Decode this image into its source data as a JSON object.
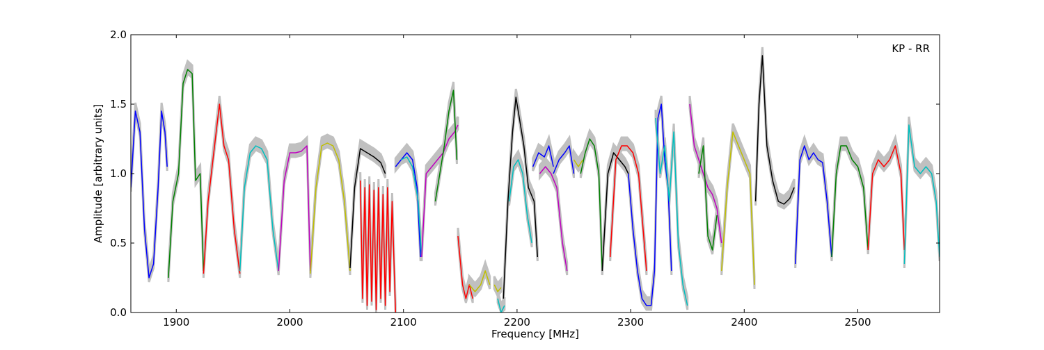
{
  "chart_data": {
    "type": "line",
    "title": "",
    "annotation": "KP - RR",
    "xlabel": "Frequency [MHz]",
    "ylabel": "Amplitude [arbitrary units]",
    "xlim": [
      1860,
      2572
    ],
    "ylim": [
      0.0,
      2.0
    ],
    "xticks": [
      1900,
      2000,
      2100,
      2200,
      2300,
      2400,
      2500
    ],
    "yticks": [
      0.0,
      0.5,
      1.0,
      1.5,
      2.0
    ],
    "xtick_labels": [
      "1900",
      "2000",
      "2100",
      "2200",
      "2300",
      "2400",
      "2500"
    ],
    "ytick_labels": [
      "0.0",
      "0.5",
      "1.0",
      "1.5",
      "2.0"
    ],
    "grid": false,
    "legend": "none",
    "background_envelope_color": "#c0c0c0",
    "series": [
      {
        "color": "#0000ff",
        "x": [
          1860,
          1864,
          1868,
          1872,
          1876,
          1880,
          1884,
          1887,
          1890,
          1892
        ],
        "y": [
          0.9,
          1.45,
          1.3,
          0.6,
          0.25,
          0.35,
          0.9,
          1.45,
          1.3,
          1.05
        ]
      },
      {
        "color": "#008000",
        "x": [
          1893,
          1897,
          1902,
          1906,
          1910,
          1914,
          1917,
          1921,
          1924
        ],
        "y": [
          0.25,
          0.8,
          1.0,
          1.65,
          1.75,
          1.72,
          0.95,
          1.0,
          0.3
        ]
      },
      {
        "color": "#ff0000",
        "x": [
          1924,
          1928,
          1933,
          1938,
          1942,
          1946,
          1951,
          1956
        ],
        "y": [
          0.28,
          0.8,
          1.15,
          1.5,
          1.2,
          1.1,
          0.6,
          0.28
        ]
      },
      {
        "color": "#00bfbf",
        "x": [
          1956,
          1960,
          1965,
          1970,
          1975,
          1980,
          1985,
          1990
        ],
        "y": [
          0.3,
          0.9,
          1.15,
          1.2,
          1.18,
          1.1,
          0.6,
          0.3
        ]
      },
      {
        "color": "#bf00bf",
        "x": [
          1990,
          1995,
          2000,
          2005,
          2010,
          2015,
          2018
        ],
        "y": [
          0.3,
          0.95,
          1.15,
          1.15,
          1.16,
          1.2,
          0.3
        ]
      },
      {
        "color": "#bfbf00",
        "x": [
          2018,
          2023,
          2028,
          2033,
          2038,
          2043,
          2048,
          2053
        ],
        "y": [
          0.28,
          0.9,
          1.2,
          1.22,
          1.2,
          1.1,
          0.8,
          0.3
        ]
      },
      {
        "color": "#000000",
        "x": [
          2053,
          2057,
          2062,
          2068,
          2074,
          2080,
          2084
        ],
        "y": [
          0.32,
          0.9,
          1.18,
          1.15,
          1.12,
          1.08,
          1.0
        ]
      },
      {
        "color": "#ff0000",
        "x": [
          2062,
          2064,
          2066,
          2068,
          2070,
          2072,
          2074,
          2076,
          2078,
          2080,
          2082,
          2084,
          2086,
          2088,
          2090,
          2093
        ],
        "y": [
          0.95,
          0.1,
          0.9,
          0.05,
          0.92,
          0.08,
          0.88,
          0.02,
          0.9,
          0.1,
          0.85,
          0.05,
          0.9,
          0.15,
          0.8,
          0.0
        ]
      },
      {
        "color": "#0000ff",
        "x": [
          2093,
          2098,
          2103,
          2108,
          2112,
          2115
        ],
        "y": [
          1.05,
          1.1,
          1.15,
          1.1,
          0.9,
          0.4
        ]
      },
      {
        "color": "#00bfbf",
        "x": [
          2098,
          2103,
          2108,
          2113,
          2116
        ],
        "y": [
          1.1,
          1.12,
          1.05,
          0.8,
          0.4
        ]
      },
      {
        "color": "#bf00bf",
        "x": [
          2116,
          2120,
          2125,
          2130,
          2135,
          2140,
          2145,
          2148
        ],
        "y": [
          0.4,
          1.0,
          1.05,
          1.1,
          1.15,
          1.25,
          1.3,
          1.35
        ]
      },
      {
        "color": "#008000",
        "x": [
          2128,
          2132,
          2136,
          2140,
          2144,
          2147
        ],
        "y": [
          0.8,
          1.0,
          1.2,
          1.45,
          1.6,
          1.1
        ]
      },
      {
        "color": "#ff0000",
        "x": [
          2148,
          2152,
          2155,
          2158,
          2161
        ],
        "y": [
          0.55,
          0.2,
          0.1,
          0.2,
          0.1
        ]
      },
      {
        "color": "#bfbf00",
        "x": [
          2158,
          2163,
          2168,
          2172,
          2176
        ],
        "y": [
          0.2,
          0.15,
          0.2,
          0.3,
          0.2
        ]
      },
      {
        "color": "#bfbf00",
        "x": [
          2180,
          2183,
          2186
        ],
        "y": [
          0.2,
          0.15,
          0.18
        ]
      },
      {
        "color": "#00bfbf",
        "x": [
          2183,
          2186,
          2189
        ],
        "y": [
          0.1,
          0.0,
          0.05
        ]
      },
      {
        "color": "#000000",
        "x": [
          2188,
          2192,
          2196,
          2199,
          2202,
          2206,
          2210,
          2215,
          2218
        ],
        "y": [
          0.1,
          0.8,
          1.3,
          1.55,
          1.4,
          1.2,
          0.9,
          0.8,
          0.4
        ]
      },
      {
        "color": "#00bfbf",
        "x": [
          2193,
          2197,
          2201,
          2205,
          2209,
          2213
        ],
        "y": [
          0.8,
          1.05,
          1.1,
          1.0,
          0.7,
          0.5
        ]
      },
      {
        "color": "#0000ff",
        "x": [
          2214,
          2219,
          2224,
          2228,
          2232
        ],
        "y": [
          1.05,
          1.15,
          1.12,
          1.2,
          1.05
        ]
      },
      {
        "color": "#bf00bf",
        "x": [
          2220,
          2225,
          2230,
          2235,
          2240,
          2244
        ],
        "y": [
          1.0,
          1.05,
          1.0,
          0.9,
          0.5,
          0.3
        ]
      },
      {
        "color": "#0000ff",
        "x": [
          2232,
          2237,
          2242,
          2246,
          2250
        ],
        "y": [
          1.0,
          1.1,
          1.15,
          1.2,
          1.0
        ]
      },
      {
        "color": "#bfbf00",
        "x": [
          2250,
          2254,
          2258
        ],
        "y": [
          1.1,
          1.05,
          1.1
        ]
      },
      {
        "color": "#008000",
        "x": [
          2256,
          2260,
          2264,
          2268,
          2272,
          2275
        ],
        "y": [
          1.0,
          1.15,
          1.25,
          1.2,
          1.0,
          0.3
        ]
      },
      {
        "color": "#000000",
        "x": [
          2275,
          2280,
          2285,
          2290,
          2295,
          2298
        ],
        "y": [
          0.3,
          1.0,
          1.15,
          1.1,
          1.05,
          1.0
        ]
      },
      {
        "color": "#ff0000",
        "x": [
          2282,
          2287,
          2292,
          2297,
          2302,
          2307,
          2311,
          2314
        ],
        "y": [
          0.4,
          1.1,
          1.2,
          1.2,
          1.15,
          1.0,
          0.6,
          0.3
        ]
      },
      {
        "color": "#0000ff",
        "x": [
          2298,
          2302,
          2306,
          2310,
          2314,
          2318,
          2321,
          2324,
          2327,
          2330,
          2333,
          2336
        ],
        "y": [
          1.0,
          0.6,
          0.3,
          0.1,
          0.05,
          0.05,
          0.3,
          1.4,
          1.5,
          1.1,
          0.9,
          0.3
        ]
      },
      {
        "color": "#00bfbf",
        "x": [
          2322,
          2326,
          2330,
          2334,
          2338,
          2342,
          2346,
          2350
        ],
        "y": [
          1.4,
          1.0,
          1.2,
          0.8,
          1.3,
          0.5,
          0.2,
          0.05
        ]
      },
      {
        "color": "#bf00bf",
        "x": [
          2352,
          2356,
          2360,
          2364,
          2368,
          2372,
          2376,
          2380
        ],
        "y": [
          1.5,
          1.2,
          1.1,
          1.0,
          0.9,
          0.85,
          0.75,
          0.5
        ]
      },
      {
        "color": "#008000",
        "x": [
          2360,
          2364,
          2368,
          2372,
          2376
        ],
        "y": [
          1.0,
          1.2,
          0.55,
          0.45,
          0.7
        ]
      },
      {
        "color": "#bfbf00",
        "x": [
          2380,
          2385,
          2390,
          2395,
          2400,
          2405,
          2409
        ],
        "y": [
          0.3,
          0.9,
          1.3,
          1.2,
          1.1,
          1.0,
          0.2
        ]
      },
      {
        "color": "#000000",
        "x": [
          2410,
          2413,
          2416,
          2420,
          2425,
          2430,
          2435,
          2440,
          2444
        ],
        "y": [
          0.8,
          1.5,
          1.85,
          1.2,
          0.95,
          0.8,
          0.78,
          0.82,
          0.9
        ]
      },
      {
        "color": "#0000ff",
        "x": [
          2445,
          2449,
          2453,
          2457,
          2461,
          2465,
          2469,
          2473,
          2477
        ],
        "y": [
          0.35,
          1.1,
          1.2,
          1.1,
          1.15,
          1.1,
          1.08,
          0.8,
          0.4
        ]
      },
      {
        "color": "#008000",
        "x": [
          2477,
          2481,
          2485,
          2490,
          2495,
          2500,
          2505,
          2509
        ],
        "y": [
          0.4,
          1.0,
          1.2,
          1.2,
          1.1,
          1.05,
          0.9,
          0.45
        ]
      },
      {
        "color": "#ff0000",
        "x": [
          2509,
          2513,
          2518,
          2523,
          2528,
          2533,
          2538,
          2541
        ],
        "y": [
          0.45,
          1.0,
          1.1,
          1.05,
          1.1,
          1.2,
          1.0,
          0.45
        ]
      },
      {
        "color": "#00bfbf",
        "x": [
          2541,
          2545,
          2550,
          2555,
          2560,
          2565,
          2569,
          2572
        ],
        "y": [
          0.35,
          1.35,
          1.05,
          1.0,
          1.05,
          1.0,
          0.8,
          0.4
        ]
      }
    ]
  }
}
